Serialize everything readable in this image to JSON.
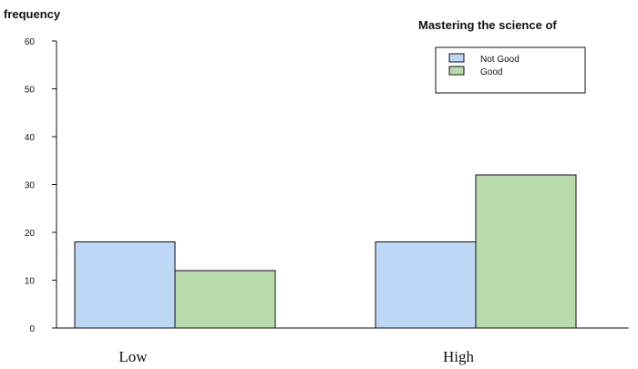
{
  "chart_data": {
    "type": "bar",
    "ylabel": "frequency",
    "legend_title": "Mastering the science of",
    "categories": [
      "Low",
      "High"
    ],
    "series": [
      {
        "name": "Not Good",
        "values": [
          18,
          18
        ],
        "color": "#bcd8f5"
      },
      {
        "name": "Good",
        "values": [
          12,
          32
        ],
        "color": "#b9dcad"
      }
    ],
    "ylim": [
      0,
      60
    ],
    "yticks": [
      "0",
      "10",
      "20",
      "30",
      "40",
      "50",
      "60"
    ],
    "legend_position": "top-right",
    "grid": false
  }
}
